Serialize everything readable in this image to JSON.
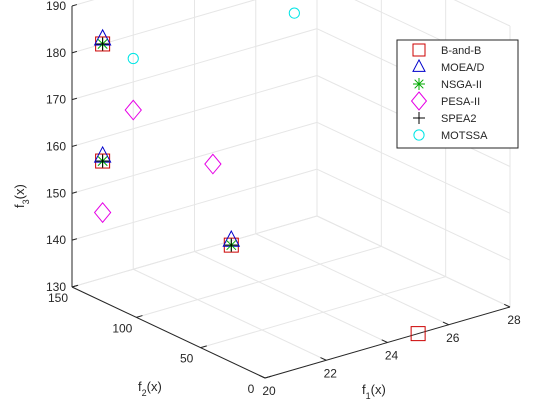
{
  "chart_data": {
    "type": "scatter3d",
    "title": "",
    "axes": {
      "x": {
        "label_base": "f",
        "label_sub": "1",
        "label_tail": "(x)",
        "ticks": [
          20,
          22,
          24,
          26,
          28
        ],
        "range": [
          20,
          28
        ]
      },
      "y": {
        "label_base": "f",
        "label_sub": "2",
        "label_tail": "(x)",
        "ticks": [
          0,
          50,
          100,
          150
        ],
        "range": [
          0,
          150
        ]
      },
      "z": {
        "label_base": "f",
        "label_sub": "3",
        "label_tail": "(x)",
        "ticks": [
          130,
          140,
          150,
          160,
          170,
          180,
          190
        ],
        "range": [
          130,
          190
        ]
      }
    },
    "grid": true,
    "box": false,
    "legend": {
      "placement": "top-right"
    },
    "series": [
      {
        "name": "B-and-B",
        "marker": "square",
        "color": "#cc0000",
        "size": 14,
        "points": [
          {
            "x": 21,
            "y": 150,
            "z": 155
          },
          {
            "x": 21,
            "y": 150,
            "z": 180
          },
          {
            "x": 21,
            "y": 50,
            "z": 150
          },
          {
            "x": 25,
            "y": 0,
            "z": 130
          }
        ]
      },
      {
        "name": "MOEA/D",
        "marker": "triangle",
        "color": "#0000cc",
        "size": 16,
        "points": [
          {
            "x": 21,
            "y": 150,
            "z": 156
          },
          {
            "x": 21,
            "y": 150,
            "z": 181
          },
          {
            "x": 21,
            "y": 50,
            "z": 151
          }
        ]
      },
      {
        "name": "NSGA-II",
        "marker": "asterisk",
        "color": "#00aa00",
        "size": 13,
        "points": [
          {
            "x": 21,
            "y": 150,
            "z": 155
          },
          {
            "x": 21,
            "y": 150,
            "z": 180
          },
          {
            "x": 21,
            "y": 50,
            "z": 150
          }
        ]
      },
      {
        "name": "PESA-II",
        "marker": "diamond",
        "color": "#e600e6",
        "size": 13,
        "points": [
          {
            "x": 22,
            "y": 150,
            "z": 164
          },
          {
            "x": 21,
            "y": 150,
            "z": 144
          },
          {
            "x": 22.5,
            "y": 100,
            "z": 158
          }
        ]
      },
      {
        "name": "SPEA2",
        "marker": "plus",
        "color": "#000000",
        "size": 13,
        "points": [
          {
            "x": 21,
            "y": 150,
            "z": 155
          },
          {
            "x": 21,
            "y": 150,
            "z": 180
          },
          {
            "x": 21,
            "y": 50,
            "z": 150
          }
        ]
      },
      {
        "name": "MOTSSA",
        "marker": "circle",
        "color": "#00e5e5",
        "size": 12,
        "points": [
          {
            "x": 22,
            "y": 150,
            "z": 175
          },
          {
            "x": 26,
            "y": 120,
            "z": 181
          }
        ]
      }
    ]
  }
}
